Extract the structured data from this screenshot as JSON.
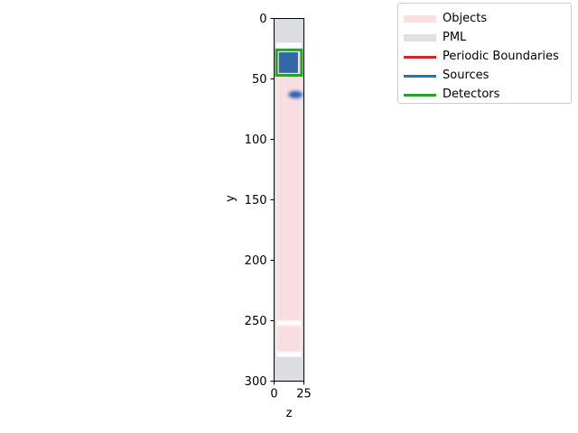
{
  "chart_data": {
    "type": "heatmap",
    "title": "",
    "xlabel": "z",
    "ylabel": "y",
    "xlim": [
      0,
      25
    ],
    "ylim": [
      300,
      0
    ],
    "y_axis_inverted": true,
    "x_ticks": [
      0,
      25
    ],
    "y_ticks": [
      0,
      50,
      100,
      150,
      200,
      250,
      300
    ],
    "grid": false,
    "legend_placement": "outside upper right",
    "legend": [
      {
        "label": "Objects",
        "color": "#ffe0e0"
      },
      {
        "label": "PML",
        "color": "#e0e0e0"
      },
      {
        "label": "Periodic Boundaries",
        "color": "#d62728"
      },
      {
        "label": "Sources",
        "color": "#1f77b4"
      },
      {
        "label": "Detectors",
        "color": "#2ca02c"
      }
    ],
    "regions": {
      "pml": [
        {
          "z": [
            0,
            25
          ],
          "y": [
            0,
            20
          ]
        },
        {
          "z": [
            0,
            25
          ],
          "y": [
            280,
            300
          ]
        },
        {
          "z": [
            0,
            2
          ],
          "y": [
            0,
            300
          ]
        },
        {
          "z": [
            23,
            25
          ],
          "y": [
            0,
            300
          ]
        }
      ],
      "objects": [
        {
          "z": [
            2,
            23
          ],
          "y": [
            25,
            250
          ]
        },
        {
          "z": [
            2,
            23
          ],
          "y": [
            254,
            276
          ]
        }
      ],
      "sources": [
        {
          "z": [
            4,
            20
          ],
          "y": [
            28,
            45
          ],
          "shape": "rect"
        },
        {
          "z": [
            12,
            24
          ],
          "y": [
            60,
            66
          ],
          "shape": "blob"
        }
      ],
      "detectors": [
        {
          "z": [
            2,
            23
          ],
          "y": [
            26,
            47
          ]
        }
      ]
    }
  }
}
